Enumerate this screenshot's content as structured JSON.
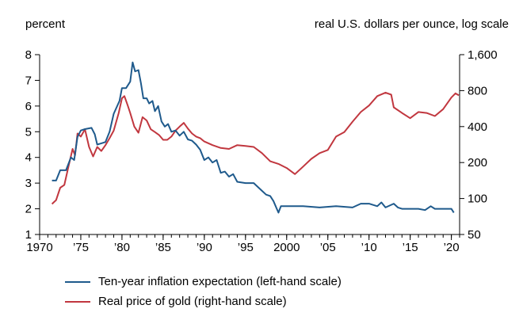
{
  "chart_data": {
    "type": "line",
    "left_axis_title": "percent",
    "right_axis_title": "real U.S. dollars per ounce, log scale",
    "x_range": [
      1970,
      2021
    ],
    "x_ticks": [
      {
        "value": 1970,
        "label": "1970"
      },
      {
        "value": 1975,
        "label": "’75"
      },
      {
        "value": 1980,
        "label": "’80"
      },
      {
        "value": 1985,
        "label": "’85"
      },
      {
        "value": 1990,
        "label": "’90"
      },
      {
        "value": 1995,
        "label": "’95"
      },
      {
        "value": 2000,
        "label": "2000"
      },
      {
        "value": 2005,
        "label": "’05"
      },
      {
        "value": 2010,
        "label": "’10"
      },
      {
        "value": 2015,
        "label": "’15"
      },
      {
        "value": 2020,
        "label": "’20"
      }
    ],
    "y_left_range": [
      1,
      8
    ],
    "y_left_ticks": [
      "1",
      "2",
      "3",
      "4",
      "5",
      "6",
      "7",
      "8"
    ],
    "y_right_range": [
      50,
      1600
    ],
    "y_right_scale": "log",
    "y_right_ticks": [
      {
        "value": 50,
        "label": "50"
      },
      {
        "value": 100,
        "label": "100"
      },
      {
        "value": 200,
        "label": "200"
      },
      {
        "value": 400,
        "label": "400"
      },
      {
        "value": 800,
        "label": "800"
      },
      {
        "value": 1600,
        "label": "1,600"
      }
    ],
    "series": [
      {
        "name": "Ten-year inflation expectation (left-hand scale)",
        "axis": "left",
        "color": "#1f5a8c",
        "points": [
          [
            1971.5,
            3.1
          ],
          [
            1972,
            3.1
          ],
          [
            1972.5,
            3.5
          ],
          [
            1973.2,
            3.5
          ],
          [
            1973.8,
            4.0
          ],
          [
            1974.2,
            3.9
          ],
          [
            1974.6,
            4.8
          ],
          [
            1975,
            5.05
          ],
          [
            1975.5,
            5.1
          ],
          [
            1976.3,
            5.15
          ],
          [
            1976.7,
            4.9
          ],
          [
            1977,
            4.5
          ],
          [
            1977.5,
            4.55
          ],
          [
            1978,
            4.6
          ],
          [
            1978.5,
            5.0
          ],
          [
            1979,
            5.7
          ],
          [
            1979.7,
            6.2
          ],
          [
            1980,
            6.7
          ],
          [
            1980.5,
            6.7
          ],
          [
            1981,
            6.95
          ],
          [
            1981.3,
            7.7
          ],
          [
            1981.6,
            7.35
          ],
          [
            1982,
            7.4
          ],
          [
            1982.3,
            6.9
          ],
          [
            1982.6,
            6.3
          ],
          [
            1983,
            6.3
          ],
          [
            1983.3,
            6.1
          ],
          [
            1983.7,
            6.2
          ],
          [
            1984,
            5.8
          ],
          [
            1984.4,
            6.0
          ],
          [
            1984.8,
            5.4
          ],
          [
            1985.2,
            5.2
          ],
          [
            1985.6,
            5.3
          ],
          [
            1986,
            5.0
          ],
          [
            1986.5,
            5.05
          ],
          [
            1987,
            4.85
          ],
          [
            1987.5,
            5.0
          ],
          [
            1988,
            4.7
          ],
          [
            1988.5,
            4.65
          ],
          [
            1989,
            4.5
          ],
          [
            1989.5,
            4.3
          ],
          [
            1990,
            3.9
          ],
          [
            1990.5,
            4.0
          ],
          [
            1991,
            3.8
          ],
          [
            1991.5,
            3.9
          ],
          [
            1992,
            3.4
          ],
          [
            1992.5,
            3.45
          ],
          [
            1993,
            3.25
          ],
          [
            1993.5,
            3.35
          ],
          [
            1994,
            3.05
          ],
          [
            1995,
            3.0
          ],
          [
            1996,
            3.0
          ],
          [
            1996.5,
            2.85
          ],
          [
            1997,
            2.7
          ],
          [
            1997.5,
            2.55
          ],
          [
            1998,
            2.5
          ],
          [
            1998.4,
            2.3
          ],
          [
            1998.8,
            2.0
          ],
          [
            1999,
            1.85
          ],
          [
            1999.3,
            2.1
          ],
          [
            2000,
            2.1
          ],
          [
            2002,
            2.1
          ],
          [
            2004,
            2.05
          ],
          [
            2006,
            2.1
          ],
          [
            2008,
            2.05
          ],
          [
            2009,
            2.2
          ],
          [
            2010,
            2.2
          ],
          [
            2011,
            2.1
          ],
          [
            2011.5,
            2.25
          ],
          [
            2012,
            2.05
          ],
          [
            2013,
            2.2
          ],
          [
            2013.5,
            2.05
          ],
          [
            2014,
            2.0
          ],
          [
            2016,
            2.0
          ],
          [
            2016.8,
            1.95
          ],
          [
            2017.5,
            2.1
          ],
          [
            2018,
            2.0
          ],
          [
            2019,
            2.0
          ],
          [
            2020,
            2.0
          ],
          [
            2020.3,
            1.85
          ]
        ]
      },
      {
        "name": "Real price of gold (right-hand scale)",
        "axis": "right",
        "color": "#c1373f",
        "points": [
          [
            1971.5,
            90
          ],
          [
            1972,
            97
          ],
          [
            1972.5,
            123
          ],
          [
            1973,
            130
          ],
          [
            1973.5,
            185
          ],
          [
            1974,
            260
          ],
          [
            1974.3,
            230
          ],
          [
            1974.6,
            350
          ],
          [
            1975,
            330
          ],
          [
            1975.5,
            380
          ],
          [
            1976,
            270
          ],
          [
            1976.5,
            225
          ],
          [
            1977,
            270
          ],
          [
            1977.5,
            250
          ],
          [
            1978,
            280
          ],
          [
            1978.5,
            320
          ],
          [
            1979,
            370
          ],
          [
            1979.6,
            520
          ],
          [
            1980,
            690
          ],
          [
            1980.3,
            720
          ],
          [
            1980.7,
            600
          ],
          [
            1981,
            520
          ],
          [
            1981.5,
            400
          ],
          [
            1982,
            355
          ],
          [
            1982.5,
            480
          ],
          [
            1983,
            450
          ],
          [
            1983.5,
            380
          ],
          [
            1984,
            360
          ],
          [
            1984.5,
            340
          ],
          [
            1985,
            310
          ],
          [
            1985.5,
            310
          ],
          [
            1986,
            330
          ],
          [
            1986.5,
            370
          ],
          [
            1987,
            400
          ],
          [
            1987.5,
            430
          ],
          [
            1988,
            385
          ],
          [
            1988.5,
            350
          ],
          [
            1989,
            330
          ],
          [
            1989.5,
            320
          ],
          [
            1990,
            300
          ],
          [
            1991,
            280
          ],
          [
            1992,
            265
          ],
          [
            1993,
            260
          ],
          [
            1994,
            280
          ],
          [
            1995,
            275
          ],
          [
            1996,
            270
          ],
          [
            1997,
            240
          ],
          [
            1998,
            205
          ],
          [
            1999,
            195
          ],
          [
            2000,
            180
          ],
          [
            2001,
            160
          ],
          [
            2002,
            185
          ],
          [
            2003,
            215
          ],
          [
            2004,
            240
          ],
          [
            2005,
            255
          ],
          [
            2006,
            330
          ],
          [
            2007,
            360
          ],
          [
            2008,
            440
          ],
          [
            2009,
            530
          ],
          [
            2010,
            600
          ],
          [
            2011,
            720
          ],
          [
            2012,
            770
          ],
          [
            2012.7,
            740
          ],
          [
            2013,
            580
          ],
          [
            2014,
            520
          ],
          [
            2015,
            470
          ],
          [
            2016,
            530
          ],
          [
            2017,
            520
          ],
          [
            2018,
            490
          ],
          [
            2019,
            560
          ],
          [
            2020,
            700
          ],
          [
            2020.5,
            760
          ],
          [
            2020.9,
            730
          ]
        ]
      }
    ]
  },
  "legend": [
    {
      "label": "Ten-year inflation expectation (left-hand scale)",
      "color": "#1f5a8c"
    },
    {
      "label": "Real price of gold (right-hand scale)",
      "color": "#c1373f"
    }
  ]
}
